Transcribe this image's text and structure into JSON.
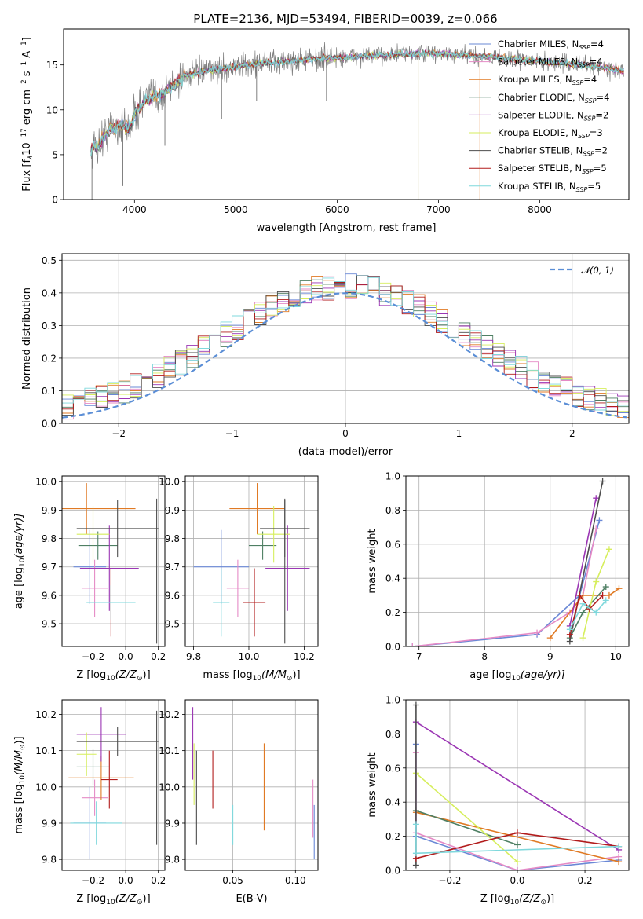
{
  "title": "PLATE=2136, MJD=53494, FIBERID=0039, z=0.066",
  "colors": {
    "chabrier_miles": "#6a88d6",
    "salpeter_miles": "#e58bc6",
    "kroupa_miles": "#e07a24",
    "chabrier_elodie": "#4e7f63",
    "salpeter_elodie": "#9b36b4",
    "kroupa_elodie": "#d6ee5c",
    "chabrier_stelib": "#4d4d4d",
    "salpeter_stelib": "#b21c1c",
    "kroupa_stelib": "#7fd8dc",
    "data": "#7f7f7f"
  },
  "chart_data": [
    {
      "id": "spectrum",
      "type": "line",
      "title": "PLATE=2136, MJD=53494, FIBERID=0039, z=0.066",
      "xlabel": "wavelength [Angstrom, rest frame]",
      "ylabel": "Flux [f",
      "ylabel_sub": "λ",
      "ylabel_rest": "10",
      "ylabel_exp": "−17",
      "ylabel_units": " erg cm",
      "ylabel_exp2": "−2",
      "ylabel_s": " s",
      "ylabel_exp3": "−1",
      "ylabel_a": " A",
      "ylabel_exp4": "−1",
      "ylabel_end": "]",
      "xlim": [
        3300,
        8880
      ],
      "ylim": [
        0,
        19
      ],
      "xticks": [
        "4000",
        "5000",
        "6000",
        "7000",
        "8000"
      ],
      "xtick_values": [
        4000,
        5000,
        6000,
        7000,
        8000
      ],
      "yticks": [
        "0",
        "5",
        "10",
        "15"
      ],
      "ytick_values": [
        0,
        5,
        10,
        15
      ],
      "grid": false,
      "legend_position": "right",
      "legend": [
        {
          "base": "Chabrier MILES, N",
          "sub": "SSP",
          "tail": "=4",
          "key": "chabrier_miles"
        },
        {
          "base": "Salpeter MILES, N",
          "sub": "SSP",
          "tail": "=4",
          "key": "salpeter_miles"
        },
        {
          "base": "Kroupa MILES, N",
          "sub": "SSP",
          "tail": "=4",
          "key": "kroupa_miles"
        },
        {
          "base": "Chabrier ELODIE, N",
          "sub": "SSP",
          "tail": "=4",
          "key": "chabrier_elodie"
        },
        {
          "base": "Salpeter ELODIE, N",
          "sub": "SSP",
          "tail": "=2",
          "key": "salpeter_elodie"
        },
        {
          "base": "Kroupa ELODIE, N",
          "sub": "SSP",
          "tail": "=3",
          "key": "kroupa_elodie"
        },
        {
          "base": "Chabrier STELIB, N",
          "sub": "SSP",
          "tail": "=2",
          "key": "chabrier_stelib"
        },
        {
          "base": "Salpeter STELIB, N",
          "sub": "SSP",
          "tail": "=5",
          "key": "salpeter_stelib"
        },
        {
          "base": "Kroupa STELIB, N",
          "sub": "SSP",
          "tail": "=5",
          "key": "kroupa_stelib"
        }
      ],
      "continuum": [
        [
          3570,
          5.6
        ],
        [
          3650,
          6.2
        ],
        [
          3750,
          7.8
        ],
        [
          3850,
          8.2
        ],
        [
          3950,
          8.0
        ],
        [
          4000,
          9.5
        ],
        [
          4100,
          11.0
        ],
        [
          4200,
          11.5
        ],
        [
          4300,
          11.8
        ],
        [
          4400,
          13.0
        ],
        [
          4500,
          13.8
        ],
        [
          4700,
          14.3
        ],
        [
          4900,
          14.6
        ],
        [
          5100,
          15.0
        ],
        [
          5300,
          15.2
        ],
        [
          5500,
          15.4
        ],
        [
          5700,
          15.6
        ],
        [
          6000,
          15.8
        ],
        [
          6300,
          16.0
        ],
        [
          6600,
          16.2
        ],
        [
          6900,
          16.3
        ],
        [
          7200,
          16.1
        ],
        [
          7500,
          15.9
        ],
        [
          7800,
          15.6
        ],
        [
          8100,
          15.3
        ],
        [
          8400,
          15.0
        ],
        [
          8700,
          14.6
        ],
        [
          8830,
          14.3
        ]
      ]
    },
    {
      "id": "residuals",
      "type": "histogram",
      "xlabel": "(data-model)/error",
      "ylabel": "Normed distribution",
      "xlim": [
        -2.5,
        2.5
      ],
      "ylim": [
        0,
        0.52
      ],
      "xticks": [
        "−2",
        "−1",
        "0",
        "1",
        "2"
      ],
      "xtick_values": [
        -2,
        -1,
        0,
        1,
        2
      ],
      "yticks": [
        "0.0",
        "0.1",
        "0.2",
        "0.3",
        "0.4",
        "0.5"
      ],
      "ytick_values": [
        0,
        0.1,
        0.2,
        0.3,
        0.4,
        0.5
      ],
      "grid": true,
      "legend_position": "top-right",
      "reference_label": "𝒩(0, 1)",
      "bin_width": 0.1
    },
    {
      "id": "age_vs_z",
      "type": "scatter",
      "xlabel": "Z [log",
      "xlabel_sub": "10",
      "xlabel_tail": "(Z/Z",
      "xlabel_sub2": "⊙",
      "xlabel_end": ")]",
      "ylabel": "age  [log",
      "ylabel_sub": "10",
      "ylabel_tail": "(age/yr)]",
      "xlim": [
        -0.39,
        0.24
      ],
      "ylim": [
        9.42,
        10.02
      ],
      "xticks": [
        "−0.2",
        "0.0",
        "0.2"
      ],
      "xtick_values": [
        -0.2,
        0.0,
        0.2
      ],
      "yticks": [
        "9.5",
        "9.6",
        "9.7",
        "9.8",
        "9.9",
        "10.0"
      ],
      "ytick_values": [
        9.5,
        9.6,
        9.7,
        9.8,
        9.9,
        10.0
      ],
      "grid": true,
      "points": [
        {
          "key": "chabrier_miles",
          "x": -0.22,
          "xerr": 0.1,
          "y": 9.7,
          "yerr": 0.13
        },
        {
          "key": "salpeter_miles",
          "x": -0.19,
          "xerr": 0.08,
          "y": 9.625,
          "yerr": 0.1
        },
        {
          "key": "kroupa_miles",
          "x": -0.24,
          "xerr": 0.3,
          "y": 9.905,
          "yerr": 0.09
        },
        {
          "key": "chabrier_elodie",
          "x": -0.17,
          "xerr": 0.12,
          "y": 9.775,
          "yerr": 0.05
        },
        {
          "key": "salpeter_elodie",
          "x": -0.1,
          "xerr": 0.18,
          "y": 9.695,
          "yerr": 0.15
        },
        {
          "key": "kroupa_elodie",
          "x": -0.2,
          "xerr": 0.1,
          "y": 9.815,
          "yerr": 0.1
        },
        {
          "key": "chabrier_stelib",
          "x": -0.05,
          "xerr": 0.25,
          "y": 9.835,
          "yerr": 0.1
        },
        {
          "key": "salpeter_stelib",
          "x": -0.09,
          "xerr": 0.1,
          "y": 9.575,
          "yerr": 0.12
        },
        {
          "key": "kroupa_stelib",
          "x": -0.09,
          "xerr": 0.15,
          "y": 9.575,
          "yerr": 0.06
        }
      ],
      "extra_verticals": [
        {
          "key": "chabrier_stelib",
          "x": 0.19,
          "y1": 9.43,
          "y2": 9.94
        }
      ]
    },
    {
      "id": "age_vs_mass",
      "type": "scatter",
      "xlabel": "mass [log",
      "xlabel_sub": "10",
      "xlabel_tail": "(M/M",
      "xlabel_sub2": "⊙",
      "xlabel_end": ")]",
      "xlim": [
        9.77,
        10.25
      ],
      "ylim": [
        9.42,
        10.02
      ],
      "xticks": [
        "9.8",
        "10.0",
        "10.2"
      ],
      "xtick_values": [
        9.8,
        10.0,
        10.2
      ],
      "yticks": [
        "9.5",
        "9.6",
        "9.7",
        "9.8",
        "9.9",
        "10.0"
      ],
      "ytick_values": [
        9.5,
        9.6,
        9.7,
        9.8,
        9.9,
        10.0
      ],
      "grid": true,
      "points": [
        {
          "key": "chabrier_miles",
          "x": 9.9,
          "xerr": 0.1,
          "y": 9.7,
          "yerr": 0.13
        },
        {
          "key": "salpeter_miles",
          "x": 9.96,
          "xerr": 0.04,
          "y": 9.625,
          "yerr": 0.1
        },
        {
          "key": "kroupa_miles",
          "x": 10.03,
          "xerr": 0.1,
          "y": 9.905,
          "yerr": 0.09
        },
        {
          "key": "chabrier_elodie",
          "x": 10.05,
          "xerr": 0.05,
          "y": 9.775,
          "yerr": 0.05
        },
        {
          "key": "salpeter_elodie",
          "x": 10.14,
          "xerr": 0.08,
          "y": 9.695,
          "yerr": 0.15
        },
        {
          "key": "kroupa_elodie",
          "x": 10.09,
          "xerr": 0.06,
          "y": 9.815,
          "yerr": 0.1
        },
        {
          "key": "chabrier_stelib",
          "x": 10.13,
          "xerr": 0.09,
          "y": 9.835,
          "yerr": 0.1
        },
        {
          "key": "salpeter_stelib",
          "x": 10.02,
          "xerr": 0.04,
          "y": 9.575,
          "yerr": 0.12
        },
        {
          "key": "kroupa_stelib",
          "x": 9.9,
          "xerr": 0.03,
          "y": 9.575,
          "yerr": 0.12
        }
      ],
      "extra_verticals": [
        {
          "key": "chabrier_stelib",
          "x": 10.13,
          "y1": 9.43,
          "y2": 9.94
        }
      ]
    },
    {
      "id": "weight_vs_age",
      "type": "line",
      "xlabel": "age  [log",
      "xlabel_sub": "10",
      "xlabel_tail": "(age/yr)]",
      "ylabel": "mass weight",
      "xlim": [
        6.8,
        10.2
      ],
      "ylim": [
        0,
        1.0
      ],
      "xticks": [
        "7",
        "8",
        "9",
        "10"
      ],
      "xtick_values": [
        7,
        8,
        9,
        10
      ],
      "yticks": [
        "0.0",
        "0.2",
        "0.4",
        "0.6",
        "0.8",
        "1.0"
      ],
      "ytick_values": [
        0,
        0.2,
        0.4,
        0.6,
        0.8,
        1.0
      ],
      "grid": true,
      "series": [
        {
          "key": "chabrier_miles",
          "x": [
            6.9,
            8.8,
            9.45,
            9.75
          ],
          "y": [
            0.0,
            0.07,
            0.3,
            0.74
          ]
        },
        {
          "key": "salpeter_miles",
          "x": [
            6.9,
            8.8,
            9.3,
            9.5,
            9.7
          ],
          "y": [
            0.0,
            0.08,
            0.2,
            0.3,
            0.69
          ]
        },
        {
          "key": "kroupa_miles",
          "x": [
            9.0,
            9.5,
            9.9,
            10.05
          ],
          "y": [
            0.05,
            0.3,
            0.3,
            0.34
          ]
        },
        {
          "key": "chabrier_elodie",
          "x": [
            9.3,
            9.5,
            9.85
          ],
          "y": [
            0.05,
            0.2,
            0.35
          ]
        },
        {
          "key": "salpeter_elodie",
          "x": [
            9.3,
            9.7
          ],
          "y": [
            0.12,
            0.87
          ]
        },
        {
          "key": "kroupa_elodie",
          "x": [
            9.5,
            9.7,
            9.9
          ],
          "y": [
            0.05,
            0.38,
            0.57
          ]
        },
        {
          "key": "chabrier_stelib",
          "x": [
            9.3,
            9.8
          ],
          "y": [
            0.03,
            0.97
          ]
        },
        {
          "key": "salpeter_stelib",
          "x": [
            9.3,
            9.45,
            9.6,
            9.8
          ],
          "y": [
            0.07,
            0.3,
            0.22,
            0.3
          ]
        },
        {
          "key": "kroupa_stelib",
          "x": [
            9.3,
            9.5,
            9.7,
            9.85
          ],
          "y": [
            0.1,
            0.25,
            0.2,
            0.27
          ]
        }
      ]
    },
    {
      "id": "mass_vs_z",
      "type": "scatter",
      "xlabel": "Z [log",
      "xlabel_sub": "10",
      "xlabel_tail": "(Z/Z",
      "xlabel_sub2": "⊙",
      "xlabel_end": ")]",
      "ylabel": "mass [log",
      "ylabel_sub": "10",
      "ylabel_tail": "(M/M",
      "ylabel_sub2": "⊙",
      "ylabel_end": ")]",
      "xlim": [
        -0.39,
        0.24
      ],
      "ylim": [
        9.77,
        10.24
      ],
      "xticks": [
        "−0.2",
        "0.0",
        "0.2"
      ],
      "xtick_values": [
        -0.2,
        0.0,
        0.2
      ],
      "yticks": [
        "9.8",
        "9.9",
        "10.0",
        "10.1",
        "10.2"
      ],
      "ytick_values": [
        9.8,
        9.9,
        10.0,
        10.1,
        10.2
      ],
      "grid": true,
      "points": [
        {
          "key": "chabrier_miles",
          "x": -0.22,
          "xerr": 0.1,
          "y": 9.9,
          "yerr": 0.1
        },
        {
          "key": "salpeter_miles",
          "x": -0.19,
          "xerr": 0.08,
          "y": 9.97,
          "yerr": 0.05
        },
        {
          "key": "kroupa_miles",
          "x": -0.15,
          "xerr": 0.2,
          "y": 10.025,
          "yerr": 0.06
        },
        {
          "key": "chabrier_elodie",
          "x": -0.2,
          "xerr": 0.1,
          "y": 10.055,
          "yerr": 0.05
        },
        {
          "key": "salpeter_elodie",
          "x": -0.15,
          "xerr": 0.15,
          "y": 10.145,
          "yerr": 0.075
        },
        {
          "key": "kroupa_elodie",
          "x": -0.24,
          "xerr": 0.06,
          "y": 10.09,
          "yerr": 0.06
        },
        {
          "key": "chabrier_stelib",
          "x": -0.05,
          "xerr": 0.25,
          "y": 10.125,
          "yerr": 0.04
        },
        {
          "key": "salpeter_stelib",
          "x": -0.1,
          "xerr": 0.05,
          "y": 10.02,
          "yerr": 0.08
        },
        {
          "key": "kroupa_stelib",
          "x": -0.18,
          "xerr": 0.16,
          "y": 9.9,
          "yerr": 0.06
        }
      ],
      "extra_verticals": [
        {
          "key": "chabrier_stelib",
          "x": 0.19,
          "y1": 9.84,
          "y2": 10.21
        }
      ]
    },
    {
      "id": "mass_vs_ebv",
      "type": "scatter",
      "xlabel": "E(B-V)",
      "xlim": [
        0.012,
        0.118
      ],
      "ylim": [
        9.77,
        10.24
      ],
      "xticks": [
        "0.05",
        "0.10"
      ],
      "xtick_values": [
        0.05,
        0.1
      ],
      "yticks": [
        "9.8",
        "9.9",
        "10.0",
        "10.1",
        "10.2"
      ],
      "ytick_values": [
        9.8,
        9.9,
        10.0,
        10.1,
        10.2
      ],
      "grid": true,
      "verticals": [
        {
          "key": "salpeter_elodie",
          "x": 0.018,
          "y1": 10.02,
          "y2": 10.22
        },
        {
          "key": "kroupa_elodie",
          "x": 0.019,
          "y1": 9.95,
          "y2": 10.12
        },
        {
          "key": "chabrier_stelib",
          "x": 0.021,
          "y1": 9.84,
          "y2": 10.1
        },
        {
          "key": "salpeter_stelib",
          "x": 0.034,
          "y1": 9.94,
          "y2": 10.1
        },
        {
          "key": "kroupa_stelib",
          "x": 0.05,
          "y1": 9.84,
          "y2": 9.95
        },
        {
          "key": "kroupa_miles",
          "x": 0.075,
          "y1": 9.88,
          "y2": 10.12
        },
        {
          "key": "salpeter_miles",
          "x": 0.114,
          "y1": 9.86,
          "y2": 10.02
        },
        {
          "key": "chabrier_miles",
          "x": 0.115,
          "y1": 9.8,
          "y2": 9.95
        }
      ]
    },
    {
      "id": "weight_vs_z",
      "type": "line",
      "xlabel": "Z [log",
      "xlabel_sub": "10",
      "xlabel_tail": "(Z/Z",
      "xlabel_sub2": "⊙",
      "xlabel_end": ")]",
      "ylabel": "mass weight",
      "xlim": [
        -0.33,
        0.33
      ],
      "ylim": [
        0,
        1.0
      ],
      "xticks": [
        "−0.2",
        "0.0",
        "0.2"
      ],
      "xtick_values": [
        -0.2,
        0.0,
        0.2
      ],
      "yticks": [
        "0.0",
        "0.2",
        "0.4",
        "0.6",
        "0.8",
        "1.0"
      ],
      "ytick_values": [
        0,
        0.2,
        0.4,
        0.6,
        0.8,
        1.0
      ],
      "grid": true,
      "series": [
        {
          "key": "chabrier_miles",
          "x": [
            -0.3,
            -0.3,
            0.0,
            0.3
          ],
          "y": [
            0.74,
            0.2,
            0.0,
            0.06
          ]
        },
        {
          "key": "salpeter_miles",
          "x": [
            -0.3,
            -0.3,
            0.0,
            0.3
          ],
          "y": [
            0.69,
            0.22,
            0.0,
            0.08
          ]
        },
        {
          "key": "kroupa_miles",
          "x": [
            -0.3,
            0.3
          ],
          "y": [
            0.34,
            0.05
          ]
        },
        {
          "key": "chabrier_elodie",
          "x": [
            -0.3,
            0.0
          ],
          "y": [
            0.35,
            0.15
          ]
        },
        {
          "key": "salpeter_elodie",
          "x": [
            -0.3,
            0.3
          ],
          "y": [
            0.87,
            0.12
          ]
        },
        {
          "key": "kroupa_elodie",
          "x": [
            -0.3,
            0.0
          ],
          "y": [
            0.57,
            0.05
          ]
        },
        {
          "key": "chabrier_stelib",
          "x": [
            -0.3,
            -0.3
          ],
          "y": [
            0.97,
            0.03
          ]
        },
        {
          "key": "salpeter_stelib",
          "x": [
            -0.3,
            0.0,
            0.3
          ],
          "y": [
            0.07,
            0.22,
            0.14
          ]
        },
        {
          "key": "kroupa_stelib",
          "x": [
            -0.3,
            -0.3,
            0.3
          ],
          "y": [
            0.27,
            0.1,
            0.14
          ]
        }
      ]
    }
  ]
}
